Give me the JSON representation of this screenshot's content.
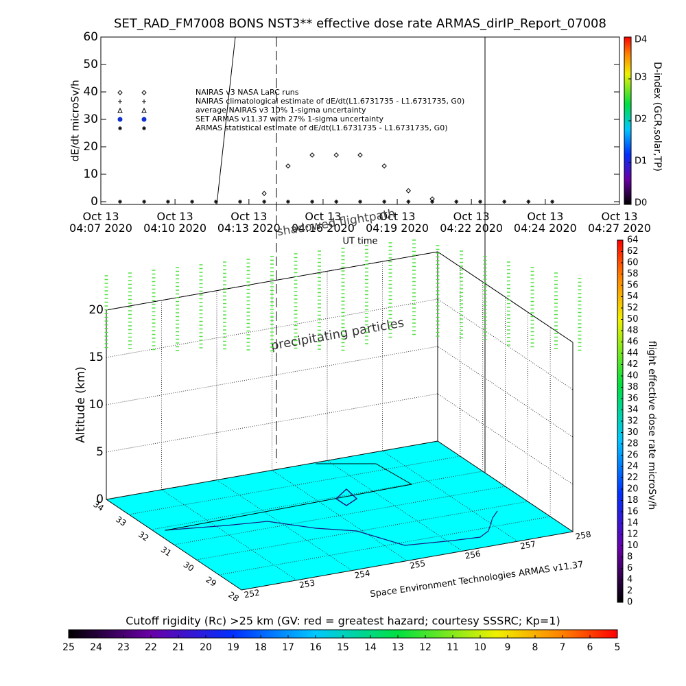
{
  "chart_data": [
    {
      "type": "scatter",
      "title": "SET_RAD_FM7008  BONS NST3** effective dose rate ARMAS_dirIP_Report_07008",
      "ylabel": "dE/dt microSv/h",
      "xlabel": "UT time",
      "xlim": [
        7,
        27
      ],
      "ylim": [
        -1,
        60
      ],
      "yticks": [
        0,
        10,
        20,
        30,
        40,
        50,
        60
      ],
      "xticks": [
        {
          "value": 7,
          "label": "Oct 13\n04:07 2020"
        },
        {
          "value": 9.86,
          "label": "Oct 13\n04:10 2020"
        },
        {
          "value": 12.71,
          "label": "Oct 13\n04:13 2020"
        },
        {
          "value": 15.57,
          "label": "Oct 13\n04:16 2020"
        },
        {
          "value": 18.43,
          "label": "Oct 13\n04:19 2020"
        },
        {
          "value": 21.29,
          "label": "Oct 13\n04:22 2020"
        },
        {
          "value": 24.14,
          "label": "Oct 13\n04:24 2020"
        },
        {
          "value": 27,
          "label": "Oct 13\n04:27 2020"
        }
      ],
      "legend": [
        "NAIRAS v3 NASA LaRC runs",
        "NAIRAS climatological estimate of dE/dt(L1.6731735 - L1.6731735, G0)",
        "average NAIRAS v3 10% 1-sigma uncertainty",
        "SET ARMAS v11.37 with 27% 1-sigma uncertainty",
        "ARMAS statistical estimate of dE/dt(L1.6731735 - L1.6731735, G0)"
      ],
      "series": [
        {
          "name": "NAIRAS v3 NASA LaRC runs",
          "marker": "diamond",
          "color": "#000000",
          "x": [
            13.3,
            14.22,
            15.15,
            16.08,
            17.0,
            17.93,
            18.86,
            19.78
          ],
          "values": [
            3,
            13,
            17,
            17,
            17,
            13,
            4,
            1
          ]
        },
        {
          "name": "ARMAS statistical estimate of dE/dt(L1.6731735 - L1.6731735, G0)",
          "marker": "star",
          "color": "#000000",
          "x": [
            7.74,
            8.67,
            9.59,
            10.52,
            11.44,
            12.37,
            13.3,
            14.22,
            15.15,
            16.08,
            17.0,
            17.93,
            18.86,
            19.78,
            20.71,
            21.63,
            22.56,
            23.49,
            24.41
          ],
          "values": [
            0,
            0,
            0,
            0,
            0,
            0,
            0,
            0,
            0,
            0,
            0,
            0,
            0,
            0,
            0,
            0,
            0,
            0,
            0
          ]
        }
      ],
      "annotations": [
        "shadowed flightpath",
        "precipitating particles"
      ],
      "colorbar": {
        "label": "D-index (GCR,solar,TP)",
        "ticks": [
          {
            "value": 0,
            "label": "D0"
          },
          {
            "value": 1,
            "label": "D1"
          },
          {
            "value": 2,
            "label": "D2"
          },
          {
            "value": 3,
            "label": "D3"
          },
          {
            "value": 4,
            "label": "D4"
          }
        ],
        "lim": [
          0,
          4
        ]
      }
    },
    {
      "type": "surface3d",
      "zlabel": "Altitude (km)",
      "zlim": [
        0,
        20
      ],
      "zticks": [
        0,
        5,
        10,
        15,
        20
      ],
      "latlim": [
        28,
        34
      ],
      "latticks": [
        28,
        29,
        30,
        31,
        32,
        33,
        34
      ],
      "lonlim": [
        252,
        258
      ],
      "lonticks": [
        252,
        253,
        254,
        255,
        256,
        257,
        258
      ],
      "footer": "Space Environment Technologies ARMAS v11.37",
      "colorbar": {
        "label": "flight effective dose rate microSv/h",
        "lim": [
          0,
          64
        ],
        "ticks": [
          0,
          2,
          4,
          6,
          8,
          10,
          12,
          14,
          16,
          18,
          20,
          22,
          24,
          26,
          28,
          30,
          32,
          34,
          36,
          38,
          40,
          42,
          44,
          46,
          48,
          50,
          52,
          54,
          56,
          58,
          60,
          62,
          64
        ]
      }
    },
    {
      "type": "colorbar",
      "label": "Cutoff rigidity (Rc) >25 km (GV: red = greatest hazard; courtesy SSSRC; Kp=1)",
      "xlim": [
        25,
        5
      ],
      "xticks": [
        25,
        24,
        23,
        22,
        21,
        20,
        19,
        18,
        17,
        16,
        15,
        14,
        13,
        12,
        11,
        10,
        9,
        8,
        7,
        6,
        5
      ]
    }
  ]
}
